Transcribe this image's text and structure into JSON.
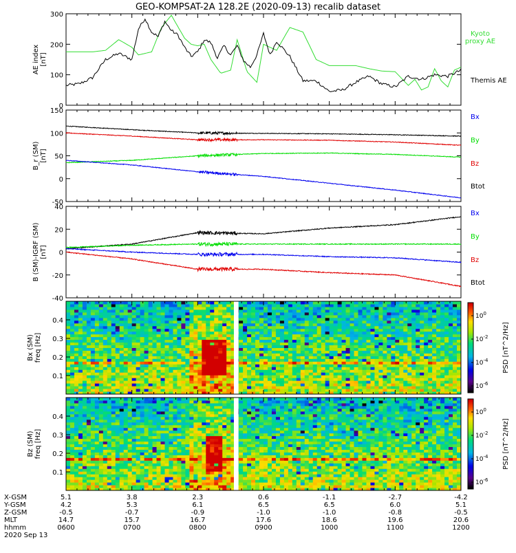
{
  "title": "GEO-KOMPSAT-2A 128.2E (2020-09-13) recalib dataset",
  "colors": {
    "black": "#000000",
    "red": "#e00000",
    "green": "#00dd00",
    "blue": "#0000ee",
    "kyoto": "#33dd33"
  },
  "chart_data": [
    {
      "type": "line",
      "ylabel": "AE index [nT]",
      "ylim": [
        0,
        300
      ],
      "yticks": [
        0,
        100,
        200,
        300
      ],
      "xlim_hours": [
        6,
        12
      ],
      "legend": [
        "Kyoto proxy AE",
        "Themis AE"
      ],
      "series": [
        {
          "name": "Kyoto proxy AE",
          "color": "#33dd33",
          "x": [
            6.0,
            6.4,
            6.6,
            6.8,
            7.0,
            7.1,
            7.3,
            7.45,
            7.6,
            7.8,
            7.9,
            8.0,
            8.1,
            8.2,
            8.35,
            8.5,
            8.6,
            8.75,
            8.9,
            9.0,
            9.2,
            9.4,
            9.6,
            9.8,
            10.0,
            10.2,
            10.4,
            10.6,
            10.8,
            11.0,
            11.2,
            11.3,
            11.4,
            11.5,
            11.6,
            11.7,
            11.8,
            11.9,
            12.0
          ],
          "y": [
            175,
            175,
            180,
            215,
            190,
            165,
            175,
            255,
            295,
            220,
            200,
            195,
            200,
            150,
            105,
            115,
            215,
            110,
            75,
            200,
            180,
            255,
            240,
            150,
            130,
            130,
            130,
            120,
            112,
            110,
            65,
            85,
            50,
            60,
            120,
            80,
            60,
            115,
            125
          ]
        },
        {
          "name": "Themis AE",
          "color": "#000000",
          "x": [
            6.0,
            6.2,
            6.4,
            6.6,
            6.8,
            7.0,
            7.1,
            7.2,
            7.3,
            7.4,
            7.5,
            7.6,
            7.7,
            7.8,
            7.9,
            8.0,
            8.1,
            8.2,
            8.3,
            8.4,
            8.5,
            8.6,
            8.7,
            8.8,
            8.9,
            9.0,
            9.1,
            9.2,
            9.4,
            9.6,
            9.8,
            10.0,
            10.2,
            10.4,
            10.6,
            10.8,
            11.0,
            11.2,
            11.4,
            11.6,
            11.8,
            12.0
          ],
          "y": [
            65,
            70,
            90,
            150,
            170,
            150,
            250,
            285,
            240,
            225,
            275,
            245,
            230,
            190,
            160,
            175,
            215,
            205,
            155,
            195,
            165,
            195,
            145,
            125,
            165,
            235,
            165,
            210,
            160,
            80,
            80,
            45,
            50,
            75,
            95,
            70,
            60,
            95,
            85,
            100,
            95,
            115
          ]
        }
      ]
    },
    {
      "type": "line",
      "ylabel": "B_r (SM) [nT]",
      "ylim": [
        -50,
        150
      ],
      "yticks": [
        -50,
        0,
        50,
        100,
        150
      ],
      "legend": [
        "Bx",
        "By",
        "Bz",
        "Btot"
      ],
      "series": [
        {
          "name": "Btot",
          "color": "#000000",
          "x": [
            6,
            7,
            8,
            9,
            10,
            11,
            12
          ],
          "y": [
            115,
            107,
            100,
            99,
            98,
            96,
            93
          ]
        },
        {
          "name": "Bz",
          "color": "#e00000",
          "x": [
            6,
            7,
            8,
            9,
            10,
            11,
            12
          ],
          "y": [
            100,
            93,
            85,
            85,
            84,
            80,
            73
          ]
        },
        {
          "name": "By",
          "color": "#00dd00",
          "x": [
            6,
            7,
            8,
            9,
            10,
            11,
            12
          ],
          "y": [
            35,
            40,
            50,
            55,
            56,
            53,
            47
          ]
        },
        {
          "name": "Bx",
          "color": "#0000ee",
          "x": [
            6,
            7,
            8,
            9,
            10,
            11,
            12
          ],
          "y": [
            40,
            30,
            15,
            5,
            -10,
            -25,
            -42
          ]
        }
      ]
    },
    {
      "type": "line",
      "ylabel": "B (SM)-IGRF (SM) [nT]",
      "ylim": [
        -40,
        40
      ],
      "yticks": [
        -40,
        -20,
        0,
        20,
        40
      ],
      "legend": [
        "Bx",
        "By",
        "Bz",
        "Btot"
      ],
      "series": [
        {
          "name": "Btot",
          "color": "#000000",
          "x": [
            6,
            7,
            8,
            9,
            10,
            11,
            12
          ],
          "y": [
            3,
            7,
            17,
            16,
            21,
            24,
            31
          ]
        },
        {
          "name": "By",
          "color": "#00dd00",
          "x": [
            6,
            7,
            8,
            9,
            10,
            11,
            12
          ],
          "y": [
            4,
            6,
            7,
            7,
            7,
            7,
            7
          ]
        },
        {
          "name": "Bx",
          "color": "#0000ee",
          "x": [
            6,
            7,
            8,
            9,
            10,
            11,
            12
          ],
          "y": [
            3,
            0,
            -2,
            -2,
            -4,
            -5,
            -9
          ]
        },
        {
          "name": "Bz",
          "color": "#e00000",
          "x": [
            6,
            7,
            8,
            9,
            10,
            11,
            12
          ],
          "y": [
            0,
            -6,
            -15,
            -15,
            -18,
            -20,
            -30
          ]
        }
      ]
    },
    {
      "type": "heatmap",
      "ylabel": "Bx (SM) freq [Hz]",
      "ylim": [
        0,
        0.5
      ],
      "yticks": [
        0.1,
        0.2,
        0.3,
        0.4
      ],
      "colorbar_label": "PSD [nT^2/Hz]",
      "colorbar_ticks": [
        "10^0",
        "10^-2",
        "10^-4",
        "10^-6"
      ],
      "data_gap_hours": [
        8.55,
        8.62
      ],
      "wave_activity_hours": [
        8.05,
        8.45
      ]
    },
    {
      "type": "heatmap",
      "ylabel": "Bz (SM) freq [Hz]",
      "ylim": [
        0,
        0.5
      ],
      "yticks": [
        0.1,
        0.2,
        0.3,
        0.4
      ],
      "colorbar_label": "PSD [nT^2/Hz]",
      "colorbar_ticks": [
        "10^0",
        "10^-2",
        "10^-4",
        "10^-6"
      ],
      "data_gap_hours": [
        8.55,
        8.62
      ],
      "wave_activity_hours": [
        8.1,
        8.35
      ]
    }
  ],
  "ephemeris": {
    "row_labels": [
      "X-GSM",
      "Y-GSM",
      "Z-GSM",
      "MLT",
      "hhmm"
    ],
    "columns": [
      [
        "5.1",
        "4.2",
        "-0.5",
        "14.7",
        "0600"
      ],
      [
        "3.8",
        "5.3",
        "-0.7",
        "15.7",
        "0700"
      ],
      [
        "2.3",
        "6.1",
        "-0.9",
        "16.7",
        "0800"
      ],
      [
        "0.6",
        "6.5",
        "-1.0",
        "17.6",
        "0900"
      ],
      [
        "-1.1",
        "6.5",
        "-1.0",
        "18.6",
        "1000"
      ],
      [
        "-2.7",
        "6.0",
        "-0.8",
        "19.6",
        "1100"
      ],
      [
        "-4.2",
        "5.1",
        "-0.5",
        "20.6",
        "1200"
      ]
    ],
    "date": "2020 Sep 13"
  }
}
